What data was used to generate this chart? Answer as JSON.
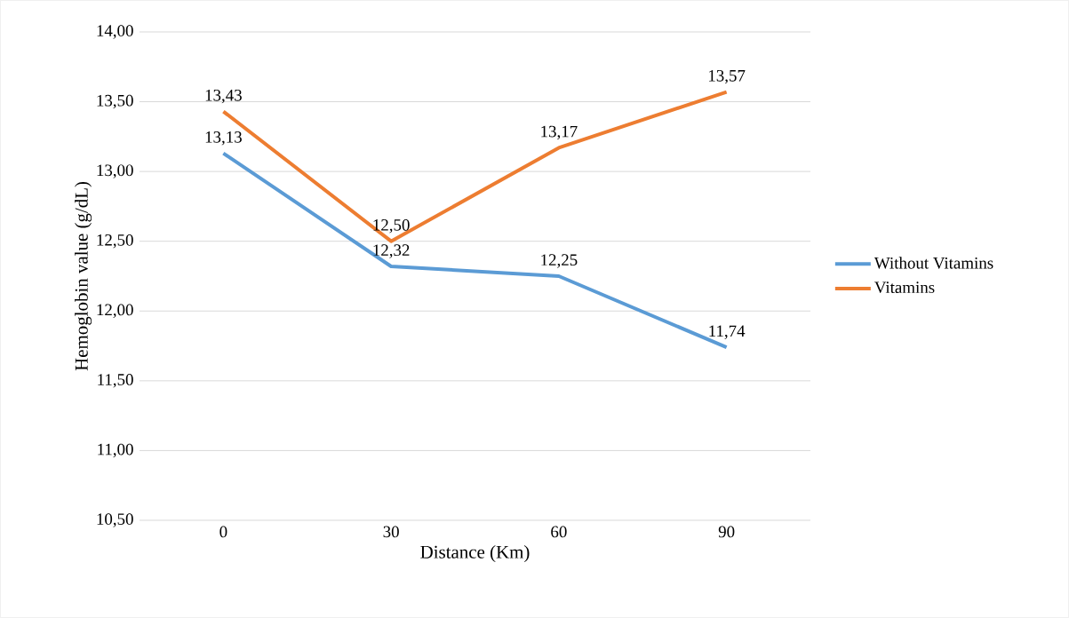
{
  "chart_data": {
    "type": "line",
    "xlabel": "Distance (Km)",
    "ylabel": "Hemoglobin value (g/dL)",
    "categories": [
      "0",
      "30",
      "60",
      "90"
    ],
    "series": [
      {
        "name": "Without Vitamins",
        "color": "#5b9bd5",
        "values": [
          13.13,
          12.32,
          12.25,
          11.74
        ],
        "value_labels": [
          "13,13",
          "12,32",
          "12,25",
          "11,74"
        ]
      },
      {
        "name": "Vitamins",
        "color": "#ed7d31",
        "values": [
          13.43,
          12.5,
          13.17,
          13.57
        ],
        "value_labels": [
          "13,43",
          "12,50",
          "13,17",
          "13,57"
        ]
      }
    ],
    "ylim": [
      10.5,
      14.0
    ],
    "yticks": [
      {
        "value": 10.5,
        "label": "10,50"
      },
      {
        "value": 11.0,
        "label": "11,00"
      },
      {
        "value": 11.5,
        "label": "11,50"
      },
      {
        "value": 12.0,
        "label": "12,00"
      },
      {
        "value": 12.5,
        "label": "12,50"
      },
      {
        "value": 13.0,
        "label": "13,00"
      },
      {
        "value": 13.5,
        "label": "13,50"
      },
      {
        "value": 14.0,
        "label": "14,00"
      }
    ],
    "grid": "y",
    "legend": "right",
    "line_style": "solid"
  }
}
